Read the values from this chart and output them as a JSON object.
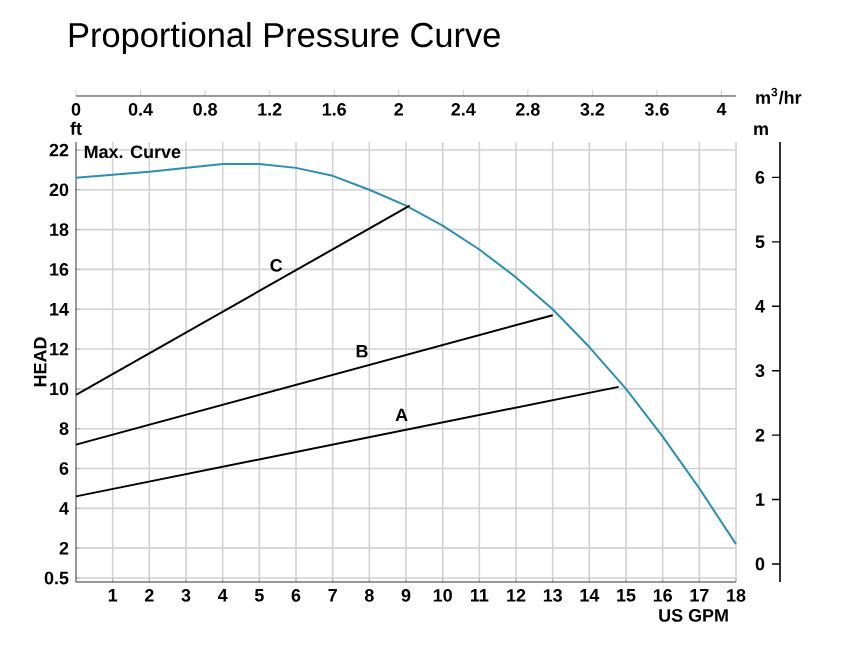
{
  "chart_data": {
    "type": "line",
    "title": "Proportional Pressure Curve",
    "xlabel": "US GPM",
    "ylabel": "HEAD",
    "x2label": "m$^{3}$/hr",
    "y2label": "m",
    "annotations": [
      "ft"
    ],
    "xlim": [
      0,
      18
    ],
    "xticks": [
      1,
      2,
      3,
      4,
      5,
      6,
      7,
      8,
      9,
      10,
      11,
      12,
      13,
      14,
      15,
      16,
      17,
      18
    ],
    "ylim": [
      0.3,
      22.4
    ],
    "yticks": [
      0.5,
      2,
      4,
      6,
      8,
      10,
      12,
      14,
      16,
      18,
      20,
      22
    ],
    "x2lim": [
      0,
      4.09
    ],
    "x2ticks": [
      0,
      0.4,
      0.8,
      1.2,
      1.6,
      2,
      2.4,
      2.8,
      3.2,
      3.6,
      4
    ],
    "y2lim": [
      -0.28,
      6.55
    ],
    "y2ticks": [
      0,
      1,
      2,
      3,
      4,
      5,
      6
    ],
    "grid": true,
    "marker": "none",
    "line_style": "solid",
    "series": [
      {
        "name": "Max. Curve",
        "color": "#2b8fb3",
        "x": [
          0,
          2,
          4,
          5,
          6,
          7,
          8,
          9,
          10,
          11,
          12,
          13,
          14,
          15,
          16,
          17,
          18
        ],
        "values": [
          20.6,
          20.9,
          21.3,
          21.3,
          21.1,
          20.7,
          20.0,
          19.2,
          18.2,
          17.0,
          15.6,
          14.0,
          12.1,
          10.0,
          7.6,
          5.0,
          2.2
        ]
      },
      {
        "name": "C",
        "color": "#000000",
        "x": [
          0,
          9.1
        ],
        "values": [
          9.7,
          19.2
        ]
      },
      {
        "name": "B",
        "color": "#000000",
        "x": [
          0,
          13
        ],
        "values": [
          7.2,
          13.7
        ]
      },
      {
        "name": "A",
        "color": "#000000",
        "x": [
          0,
          14.8
        ],
        "values": [
          4.6,
          10.1
        ]
      }
    ]
  }
}
